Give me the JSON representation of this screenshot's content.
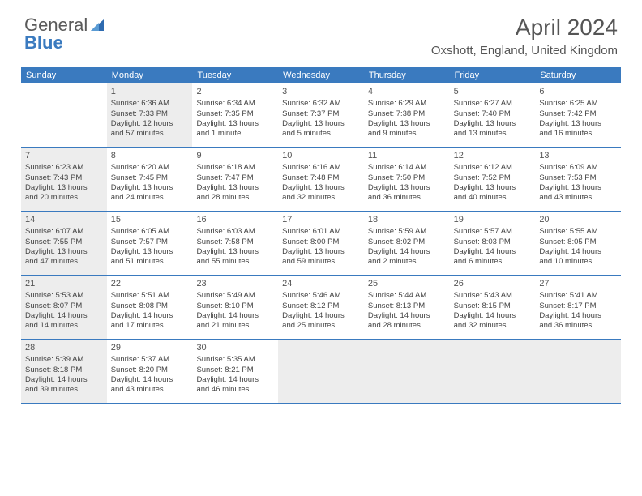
{
  "brand": {
    "part1": "General",
    "part2": "Blue"
  },
  "title": "April 2024",
  "location": "Oxshott, England, United Kingdom",
  "colors": {
    "header_bg": "#3a7abf",
    "shaded_bg": "#ededed",
    "text": "#444444",
    "title_text": "#555555"
  },
  "day_names": [
    "Sunday",
    "Monday",
    "Tuesday",
    "Wednesday",
    "Thursday",
    "Friday",
    "Saturday"
  ],
  "weeks": [
    [
      {
        "num": "",
        "shaded": false,
        "lines": []
      },
      {
        "num": "1",
        "shaded": true,
        "lines": [
          "Sunrise: 6:36 AM",
          "Sunset: 7:33 PM",
          "Daylight: 12 hours",
          "and 57 minutes."
        ]
      },
      {
        "num": "2",
        "shaded": false,
        "lines": [
          "Sunrise: 6:34 AM",
          "Sunset: 7:35 PM",
          "Daylight: 13 hours",
          "and 1 minute."
        ]
      },
      {
        "num": "3",
        "shaded": false,
        "lines": [
          "Sunrise: 6:32 AM",
          "Sunset: 7:37 PM",
          "Daylight: 13 hours",
          "and 5 minutes."
        ]
      },
      {
        "num": "4",
        "shaded": false,
        "lines": [
          "Sunrise: 6:29 AM",
          "Sunset: 7:38 PM",
          "Daylight: 13 hours",
          "and 9 minutes."
        ]
      },
      {
        "num": "5",
        "shaded": false,
        "lines": [
          "Sunrise: 6:27 AM",
          "Sunset: 7:40 PM",
          "Daylight: 13 hours",
          "and 13 minutes."
        ]
      },
      {
        "num": "6",
        "shaded": false,
        "lines": [
          "Sunrise: 6:25 AM",
          "Sunset: 7:42 PM",
          "Daylight: 13 hours",
          "and 16 minutes."
        ]
      }
    ],
    [
      {
        "num": "7",
        "shaded": true,
        "lines": [
          "Sunrise: 6:23 AM",
          "Sunset: 7:43 PM",
          "Daylight: 13 hours",
          "and 20 minutes."
        ]
      },
      {
        "num": "8",
        "shaded": false,
        "lines": [
          "Sunrise: 6:20 AM",
          "Sunset: 7:45 PM",
          "Daylight: 13 hours",
          "and 24 minutes."
        ]
      },
      {
        "num": "9",
        "shaded": false,
        "lines": [
          "Sunrise: 6:18 AM",
          "Sunset: 7:47 PM",
          "Daylight: 13 hours",
          "and 28 minutes."
        ]
      },
      {
        "num": "10",
        "shaded": false,
        "lines": [
          "Sunrise: 6:16 AM",
          "Sunset: 7:48 PM",
          "Daylight: 13 hours",
          "and 32 minutes."
        ]
      },
      {
        "num": "11",
        "shaded": false,
        "lines": [
          "Sunrise: 6:14 AM",
          "Sunset: 7:50 PM",
          "Daylight: 13 hours",
          "and 36 minutes."
        ]
      },
      {
        "num": "12",
        "shaded": false,
        "lines": [
          "Sunrise: 6:12 AM",
          "Sunset: 7:52 PM",
          "Daylight: 13 hours",
          "and 40 minutes."
        ]
      },
      {
        "num": "13",
        "shaded": false,
        "lines": [
          "Sunrise: 6:09 AM",
          "Sunset: 7:53 PM",
          "Daylight: 13 hours",
          "and 43 minutes."
        ]
      }
    ],
    [
      {
        "num": "14",
        "shaded": true,
        "lines": [
          "Sunrise: 6:07 AM",
          "Sunset: 7:55 PM",
          "Daylight: 13 hours",
          "and 47 minutes."
        ]
      },
      {
        "num": "15",
        "shaded": false,
        "lines": [
          "Sunrise: 6:05 AM",
          "Sunset: 7:57 PM",
          "Daylight: 13 hours",
          "and 51 minutes."
        ]
      },
      {
        "num": "16",
        "shaded": false,
        "lines": [
          "Sunrise: 6:03 AM",
          "Sunset: 7:58 PM",
          "Daylight: 13 hours",
          "and 55 minutes."
        ]
      },
      {
        "num": "17",
        "shaded": false,
        "lines": [
          "Sunrise: 6:01 AM",
          "Sunset: 8:00 PM",
          "Daylight: 13 hours",
          "and 59 minutes."
        ]
      },
      {
        "num": "18",
        "shaded": false,
        "lines": [
          "Sunrise: 5:59 AM",
          "Sunset: 8:02 PM",
          "Daylight: 14 hours",
          "and 2 minutes."
        ]
      },
      {
        "num": "19",
        "shaded": false,
        "lines": [
          "Sunrise: 5:57 AM",
          "Sunset: 8:03 PM",
          "Daylight: 14 hours",
          "and 6 minutes."
        ]
      },
      {
        "num": "20",
        "shaded": false,
        "lines": [
          "Sunrise: 5:55 AM",
          "Sunset: 8:05 PM",
          "Daylight: 14 hours",
          "and 10 minutes."
        ]
      }
    ],
    [
      {
        "num": "21",
        "shaded": true,
        "lines": [
          "Sunrise: 5:53 AM",
          "Sunset: 8:07 PM",
          "Daylight: 14 hours",
          "and 14 minutes."
        ]
      },
      {
        "num": "22",
        "shaded": false,
        "lines": [
          "Sunrise: 5:51 AM",
          "Sunset: 8:08 PM",
          "Daylight: 14 hours",
          "and 17 minutes."
        ]
      },
      {
        "num": "23",
        "shaded": false,
        "lines": [
          "Sunrise: 5:49 AM",
          "Sunset: 8:10 PM",
          "Daylight: 14 hours",
          "and 21 minutes."
        ]
      },
      {
        "num": "24",
        "shaded": false,
        "lines": [
          "Sunrise: 5:46 AM",
          "Sunset: 8:12 PM",
          "Daylight: 14 hours",
          "and 25 minutes."
        ]
      },
      {
        "num": "25",
        "shaded": false,
        "lines": [
          "Sunrise: 5:44 AM",
          "Sunset: 8:13 PM",
          "Daylight: 14 hours",
          "and 28 minutes."
        ]
      },
      {
        "num": "26",
        "shaded": false,
        "lines": [
          "Sunrise: 5:43 AM",
          "Sunset: 8:15 PM",
          "Daylight: 14 hours",
          "and 32 minutes."
        ]
      },
      {
        "num": "27",
        "shaded": false,
        "lines": [
          "Sunrise: 5:41 AM",
          "Sunset: 8:17 PM",
          "Daylight: 14 hours",
          "and 36 minutes."
        ]
      }
    ],
    [
      {
        "num": "28",
        "shaded": true,
        "lines": [
          "Sunrise: 5:39 AM",
          "Sunset: 8:18 PM",
          "Daylight: 14 hours",
          "and 39 minutes."
        ]
      },
      {
        "num": "29",
        "shaded": false,
        "lines": [
          "Sunrise: 5:37 AM",
          "Sunset: 8:20 PM",
          "Daylight: 14 hours",
          "and 43 minutes."
        ]
      },
      {
        "num": "30",
        "shaded": false,
        "lines": [
          "Sunrise: 5:35 AM",
          "Sunset: 8:21 PM",
          "Daylight: 14 hours",
          "and 46 minutes."
        ]
      },
      {
        "num": "",
        "shaded": true,
        "lines": []
      },
      {
        "num": "",
        "shaded": true,
        "lines": []
      },
      {
        "num": "",
        "shaded": true,
        "lines": []
      },
      {
        "num": "",
        "shaded": true,
        "lines": []
      }
    ]
  ]
}
